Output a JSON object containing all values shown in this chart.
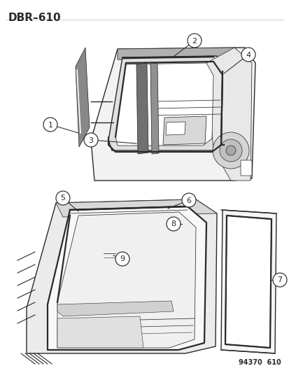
{
  "title": "DBR–610",
  "footer": "94370  610",
  "bg": "#ffffff",
  "lc": "#2a2a2a",
  "title_fs": 11,
  "footer_fs": 7
}
